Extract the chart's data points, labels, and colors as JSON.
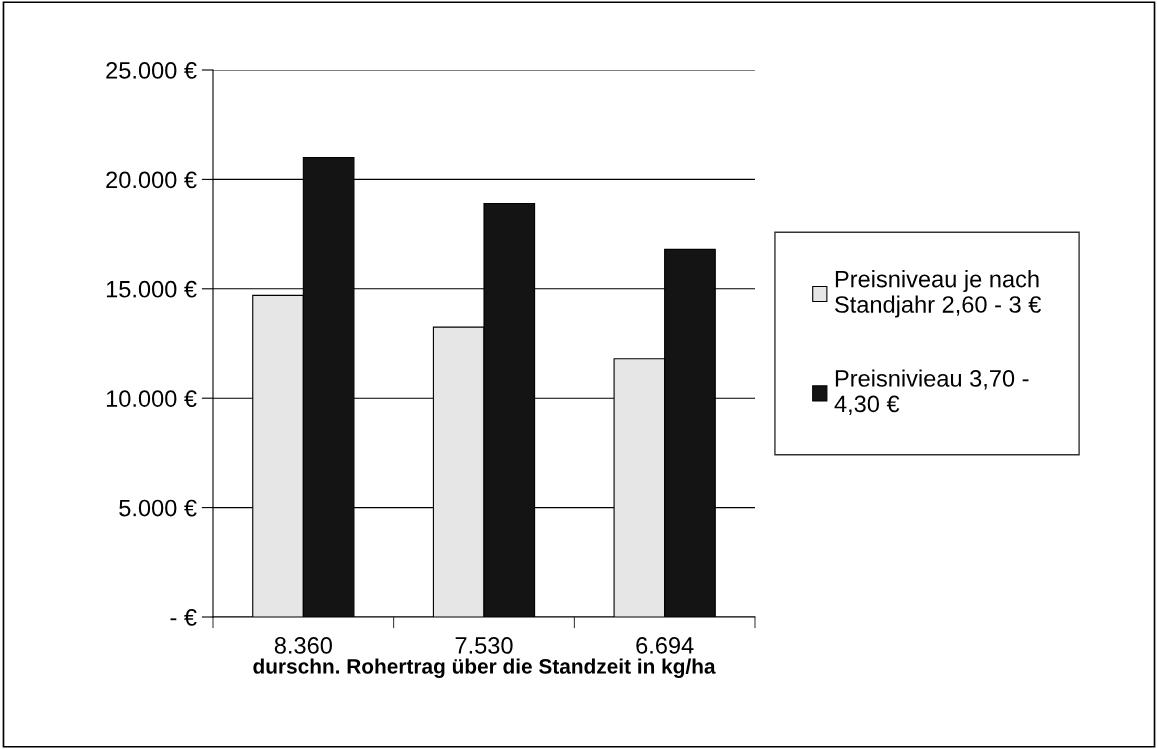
{
  "chart_data": {
    "type": "bar",
    "xlabel": "durschn. Rohertrag über die Standzeit in kg/ha",
    "categories": [
      "8.360",
      "7.530",
      "6.694"
    ],
    "series": [
      {
        "name": "Preisniveau je nach\nStandjahr 2,60 - 3 €",
        "color": "#e6e6e6",
        "values": [
          14700,
          13250,
          11800
        ]
      },
      {
        "name": "Preisnivieau 3,70 -\n4,30 €",
        "color": "#141414",
        "values": [
          21000,
          18900,
          16800
        ]
      }
    ],
    "ylim": [
      0,
      25000
    ],
    "yticks": [
      {
        "value": 0,
        "label": "- €"
      },
      {
        "value": 5000,
        "label": "5.000 €"
      },
      {
        "value": 10000,
        "label": "10.000 €"
      },
      {
        "value": 15000,
        "label": "15.000 €"
      },
      {
        "value": 20000,
        "label": "20.000 €"
      },
      {
        "value": 25000,
        "label": "25.000 €"
      }
    ],
    "grid": "y",
    "legend": "right"
  }
}
